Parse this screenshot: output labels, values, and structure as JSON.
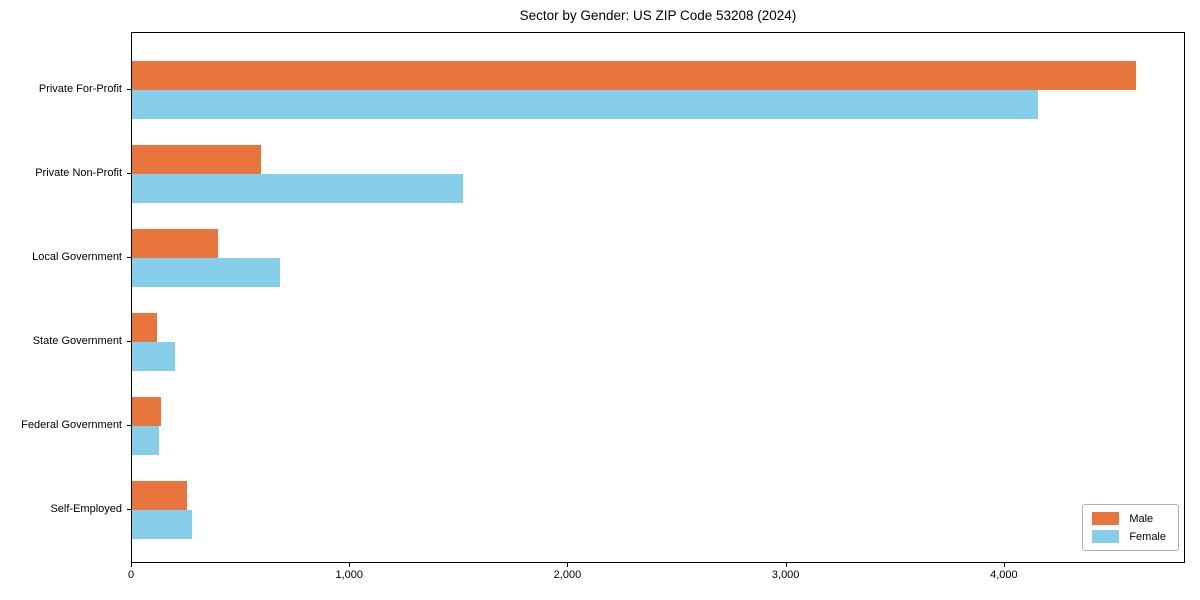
{
  "title": "Sector by Gender: US ZIP Code 53208 (2024)",
  "colors": {
    "male": "#e8763c",
    "female": "#87ceeb",
    "axis": "#000000",
    "legend_border": "#b0b0b0",
    "background": "#ffffff"
  },
  "legend": {
    "position": "lower right",
    "items": [
      "Male",
      "Female"
    ]
  },
  "chart_data": {
    "type": "bar",
    "orientation": "horizontal",
    "title": "Sector by Gender: US ZIP Code 53208 (2024)",
    "categories": [
      "Private For-Profit",
      "Private Non-Profit",
      "Local Government",
      "State Government",
      "Federal Government",
      "Self-Employed"
    ],
    "series": [
      {
        "name": "Male",
        "color": "#e8763c",
        "values": [
          4600,
          590,
          395,
          115,
          135,
          250
        ]
      },
      {
        "name": "Female",
        "color": "#87ceeb",
        "values": [
          4150,
          1515,
          680,
          195,
          125,
          275
        ]
      }
    ],
    "xlabel": "",
    "ylabel": "",
    "xlim": [
      0,
      4830
    ],
    "xticks": [
      0,
      1000,
      2000,
      3000,
      4000
    ],
    "xtick_labels": [
      "0",
      "1,000",
      "2,000",
      "3,000",
      "4,000"
    ],
    "grid": false,
    "legend_position": "lower right"
  }
}
